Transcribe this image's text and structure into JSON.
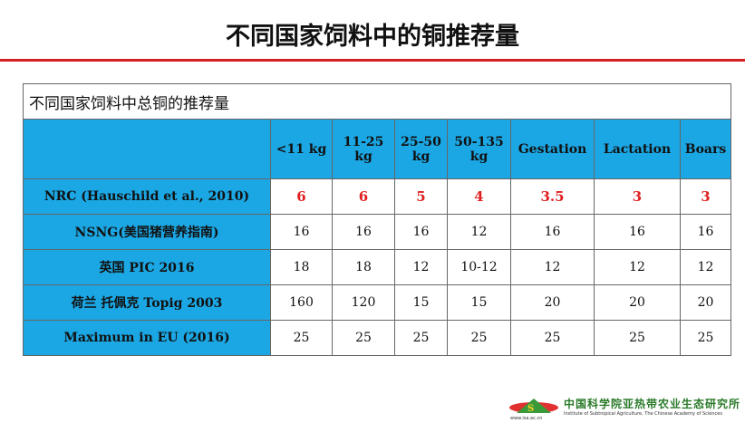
{
  "title": "不同国家饲料中的铜推荐量",
  "table": {
    "caption": "不同国家饲料中总铜的推荐量",
    "headers": [
      "",
      "<11 kg",
      "11-25 kg",
      "25-50 kg",
      "50-135 kg",
      "Gestation",
      "Lactation",
      "Boars"
    ],
    "rows": [
      {
        "label": "NRC (Hauschild et al., 2010)",
        "values": [
          "6",
          "6",
          "5",
          "4",
          "3.5",
          "3",
          "3"
        ],
        "highlight": true
      },
      {
        "label": "NSNG(美国猪营养指南)",
        "values": [
          "16",
          "16",
          "16",
          "12",
          "16",
          "16",
          "16"
        ]
      },
      {
        "label": "英国 PIC 2016",
        "values": [
          "18",
          "18",
          "12",
          "10-12",
          "12",
          "12",
          "12"
        ]
      },
      {
        "label": "荷兰 托佩克 Topig 2003",
        "values": [
          "160",
          "120",
          "15",
          "15",
          "20",
          "20",
          "20"
        ]
      },
      {
        "label": "Maximum in EU (2016)",
        "values": [
          "25",
          "25",
          "25",
          "25",
          "25",
          "25",
          "25"
        ]
      }
    ]
  },
  "colors": {
    "header_bg": "#1ba7e4",
    "highlight_text": "#e02020",
    "rule": "#d42020"
  },
  "logo": {
    "name_cn": "中国科学院亚热带农业生态研究所",
    "name_en": "Institute of Subtropical Agriculture, The Chinese Academy of Sciences",
    "url": "www.isa.ac.cn"
  }
}
